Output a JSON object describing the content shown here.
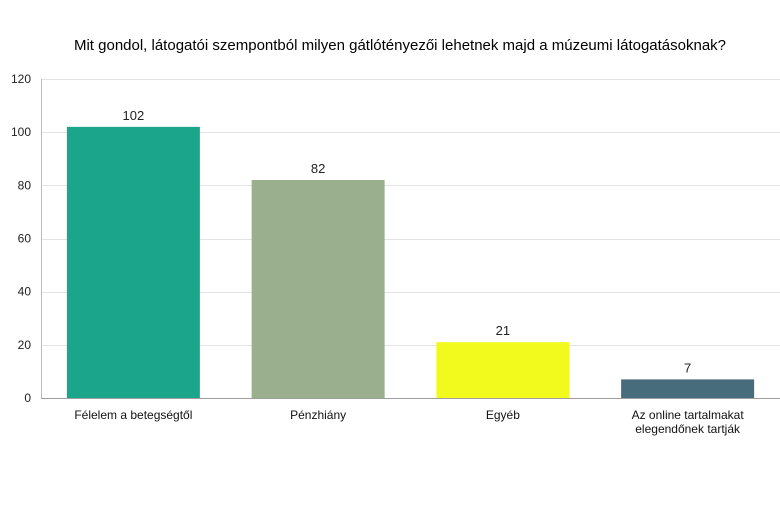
{
  "chart_data": {
    "type": "bar",
    "title": "Mit gondol, látogatói szempontból milyen gátlótényezői lehetnek majd a múzeumi látogatásoknak?",
    "xlabel": "",
    "ylabel": "",
    "categories": [
      [
        "Félelem a betegségtől"
      ],
      [
        "Pénzhiány"
      ],
      [
        "Egyéb"
      ],
      [
        "Az online tartalmakat",
        "elegendőnek tartják"
      ]
    ],
    "values": [
      102,
      82,
      21,
      7
    ],
    "colors": [
      "#1ba68c",
      "#9aaf8d",
      "#f2fa1d",
      "#476c7c"
    ],
    "ylim": [
      0,
      120
    ],
    "yticks": [
      0,
      20,
      40,
      60,
      80,
      100,
      120
    ],
    "grid": true,
    "legend": "none"
  }
}
